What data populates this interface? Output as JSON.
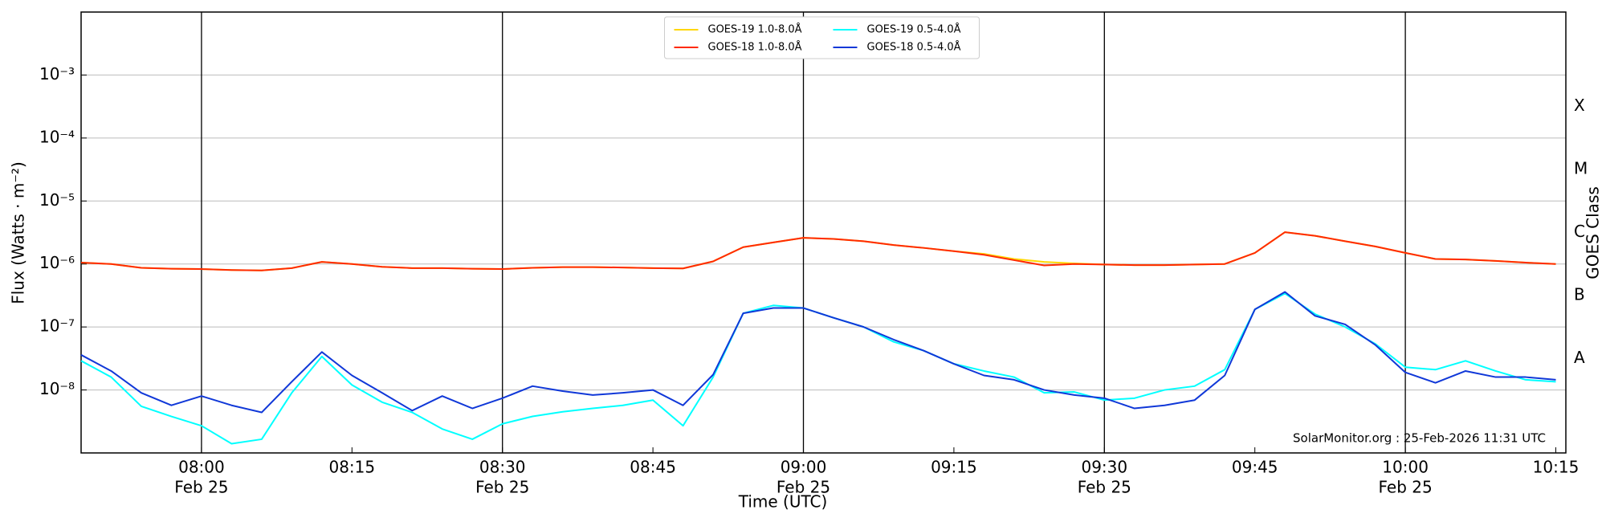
{
  "chart_data": {
    "type": "line",
    "y_axis_label": "Flux (Watts · m⁻²)",
    "x_axis_label": "Time (UTC)",
    "y2_axis_label": "GOES Class",
    "annotation": "SolarMonitor.org : 25-Feb-2026 11:31 UTC",
    "log_scale": true,
    "grid": true,
    "legend_position": "top",
    "xlim": [
      "07:48",
      "10:16"
    ],
    "xticks": [
      {
        "value": "08:00",
        "label": "08:00",
        "date": "Feb 25"
      },
      "08:15",
      {
        "value": "08:30",
        "label": "08:30",
        "date": "Feb 25"
      },
      "08:45",
      {
        "value": "09:00",
        "label": "09:00",
        "date": "Feb 25"
      },
      "09:15",
      {
        "value": "09:30",
        "label": "09:30",
        "date": "Feb 25"
      },
      "09:45",
      {
        "value": "10:00",
        "label": "10:00",
        "date": "Feb 25"
      },
      "10:15"
    ],
    "ylim": [
      1e-09,
      0.01
    ],
    "yticks": [
      {
        "value": 1e-08,
        "label": "10⁻⁸"
      },
      {
        "value": 1e-07,
        "label": "10⁻⁷"
      },
      {
        "value": 1e-06,
        "label": "10⁻⁶"
      },
      {
        "value": 1e-05,
        "label": "10⁻⁵"
      },
      {
        "value": 0.0001,
        "label": "10⁻⁴"
      },
      {
        "value": 0.001,
        "label": "10⁻³"
      }
    ],
    "y2lim": [
      1e-09,
      0.01
    ],
    "y2ticks": [
      {
        "value": 3.16e-08,
        "label": "A"
      },
      {
        "value": 3.16e-07,
        "label": "B"
      },
      {
        "value": 3.16e-06,
        "label": "C"
      },
      {
        "value": 3.16e-05,
        "label": "M"
      },
      {
        "value": 0.000316,
        "label": "X"
      }
    ],
    "x": [
      "07:48",
      "07:51",
      "07:54",
      "07:57",
      "08:00",
      "08:03",
      "08:06",
      "08:09",
      "08:12",
      "08:15",
      "08:18",
      "08:21",
      "08:24",
      "08:27",
      "08:30",
      "08:33",
      "08:36",
      "08:39",
      "08:42",
      "08:45",
      "08:48",
      "08:51",
      "08:54",
      "08:57",
      "09:00",
      "09:03",
      "09:06",
      "09:09",
      "09:12",
      "09:15",
      "09:18",
      "09:21",
      "09:24",
      "09:27",
      "09:30",
      "09:33",
      "09:36",
      "09:39",
      "09:42",
      "09:45",
      "09:48",
      "09:51",
      "09:54",
      "09:57",
      "10:00",
      "10:03",
      "10:06",
      "10:09",
      "10:12",
      "10:15"
    ],
    "series": [
      {
        "name": "GOES-19 1.0-8.0Å",
        "color": "#ffd700",
        "values": [
          1.05e-06,
          1e-06,
          8.7e-07,
          8.4e-07,
          8.3e-07,
          8e-07,
          7.9e-07,
          8.6e-07,
          1.08e-06,
          1e-06,
          9e-07,
          8.6e-07,
          8.6e-07,
          8.4e-07,
          8.3e-07,
          8.7e-07,
          8.9e-07,
          8.9e-07,
          8.8e-07,
          8.6e-07,
          8.5e-07,
          1.1e-06,
          1.85e-06,
          2.2e-06,
          2.6e-06,
          2.5e-06,
          2.3e-06,
          2e-06,
          1.8e-06,
          1.6e-06,
          1.45e-06,
          1.2e-06,
          1.08e-06,
          1.02e-06,
          9.8e-07,
          9.6e-07,
          9.6e-07,
          9.8e-07,
          1e-06,
          1.5e-06,
          3.2e-06,
          2.8e-06,
          2.3e-06,
          1.9e-06,
          1.5e-06,
          1.2e-06,
          1.18e-06,
          1.12e-06,
          1.05e-06,
          1e-06
        ]
      },
      {
        "name": "GOES-18 1.0-8.0Å",
        "color": "#ff2a00",
        "values": [
          1.05e-06,
          1e-06,
          8.7e-07,
          8.4e-07,
          8.3e-07,
          8e-07,
          7.9e-07,
          8.6e-07,
          1.08e-06,
          1e-06,
          9e-07,
          8.6e-07,
          8.6e-07,
          8.4e-07,
          8.3e-07,
          8.7e-07,
          8.9e-07,
          8.9e-07,
          8.8e-07,
          8.6e-07,
          8.5e-07,
          1.1e-06,
          1.85e-06,
          2.2e-06,
          2.6e-06,
          2.5e-06,
          2.3e-06,
          2e-06,
          1.8e-06,
          1.6e-06,
          1.4e-06,
          1.15e-06,
          9.5e-07,
          1e-06,
          9.8e-07,
          9.6e-07,
          9.6e-07,
          9.8e-07,
          1e-06,
          1.5e-06,
          3.2e-06,
          2.8e-06,
          2.3e-06,
          1.9e-06,
          1.5e-06,
          1.2e-06,
          1.18e-06,
          1.12e-06,
          1.05e-06,
          1e-06
        ]
      },
      {
        "name": "GOES-19 0.5-4.0Å",
        "color": "#00ffff",
        "values": [
          2.9e-08,
          1.6e-08,
          5.5e-09,
          3.8e-09,
          2.7e-09,
          1.4e-09,
          1.65e-09,
          9e-09,
          3.4e-08,
          1.2e-08,
          6.4e-09,
          4.4e-09,
          2.4e-09,
          1.65e-09,
          2.9e-09,
          3.8e-09,
          4.5e-09,
          5.1e-09,
          5.7e-09,
          6.9e-09,
          2.7e-09,
          1.6e-08,
          1.65e-07,
          2.2e-07,
          2e-07,
          1.4e-07,
          1e-07,
          5.8e-08,
          4.2e-08,
          2.6e-08,
          2e-08,
          1.6e-08,
          9e-09,
          9.3e-09,
          6.9e-09,
          7.4e-09,
          1e-08,
          1.15e-08,
          2.1e-08,
          1.9e-07,
          3.4e-07,
          1.6e-07,
          1e-07,
          5.4e-08,
          2.3e-08,
          2.1e-08,
          2.9e-08,
          2e-08,
          1.45e-08,
          1.35e-08
        ]
      },
      {
        "name": "GOES-18 0.5-4.0Å",
        "color": "#1038d8",
        "values": [
          3.6e-08,
          2e-08,
          9e-09,
          5.7e-09,
          8e-09,
          5.7e-09,
          4.4e-09,
          1.35e-08,
          4e-08,
          1.7e-08,
          9e-09,
          4.7e-09,
          8e-09,
          5.1e-09,
          7.4e-09,
          1.15e-08,
          9.6e-09,
          8.3e-09,
          9e-09,
          1e-08,
          5.7e-09,
          1.75e-08,
          1.65e-07,
          2e-07,
          2e-07,
          1.4e-07,
          1e-07,
          6.3e-08,
          4.2e-08,
          2.6e-08,
          1.7e-08,
          1.45e-08,
          1e-08,
          8.3e-09,
          7.4e-09,
          5.1e-09,
          5.7e-09,
          6.9e-09,
          1.7e-08,
          1.9e-07,
          3.6e-07,
          1.5e-07,
          1.1e-07,
          5.2e-08,
          1.9e-08,
          1.3e-08,
          2e-08,
          1.6e-08,
          1.6e-08,
          1.45e-08
        ]
      }
    ]
  }
}
